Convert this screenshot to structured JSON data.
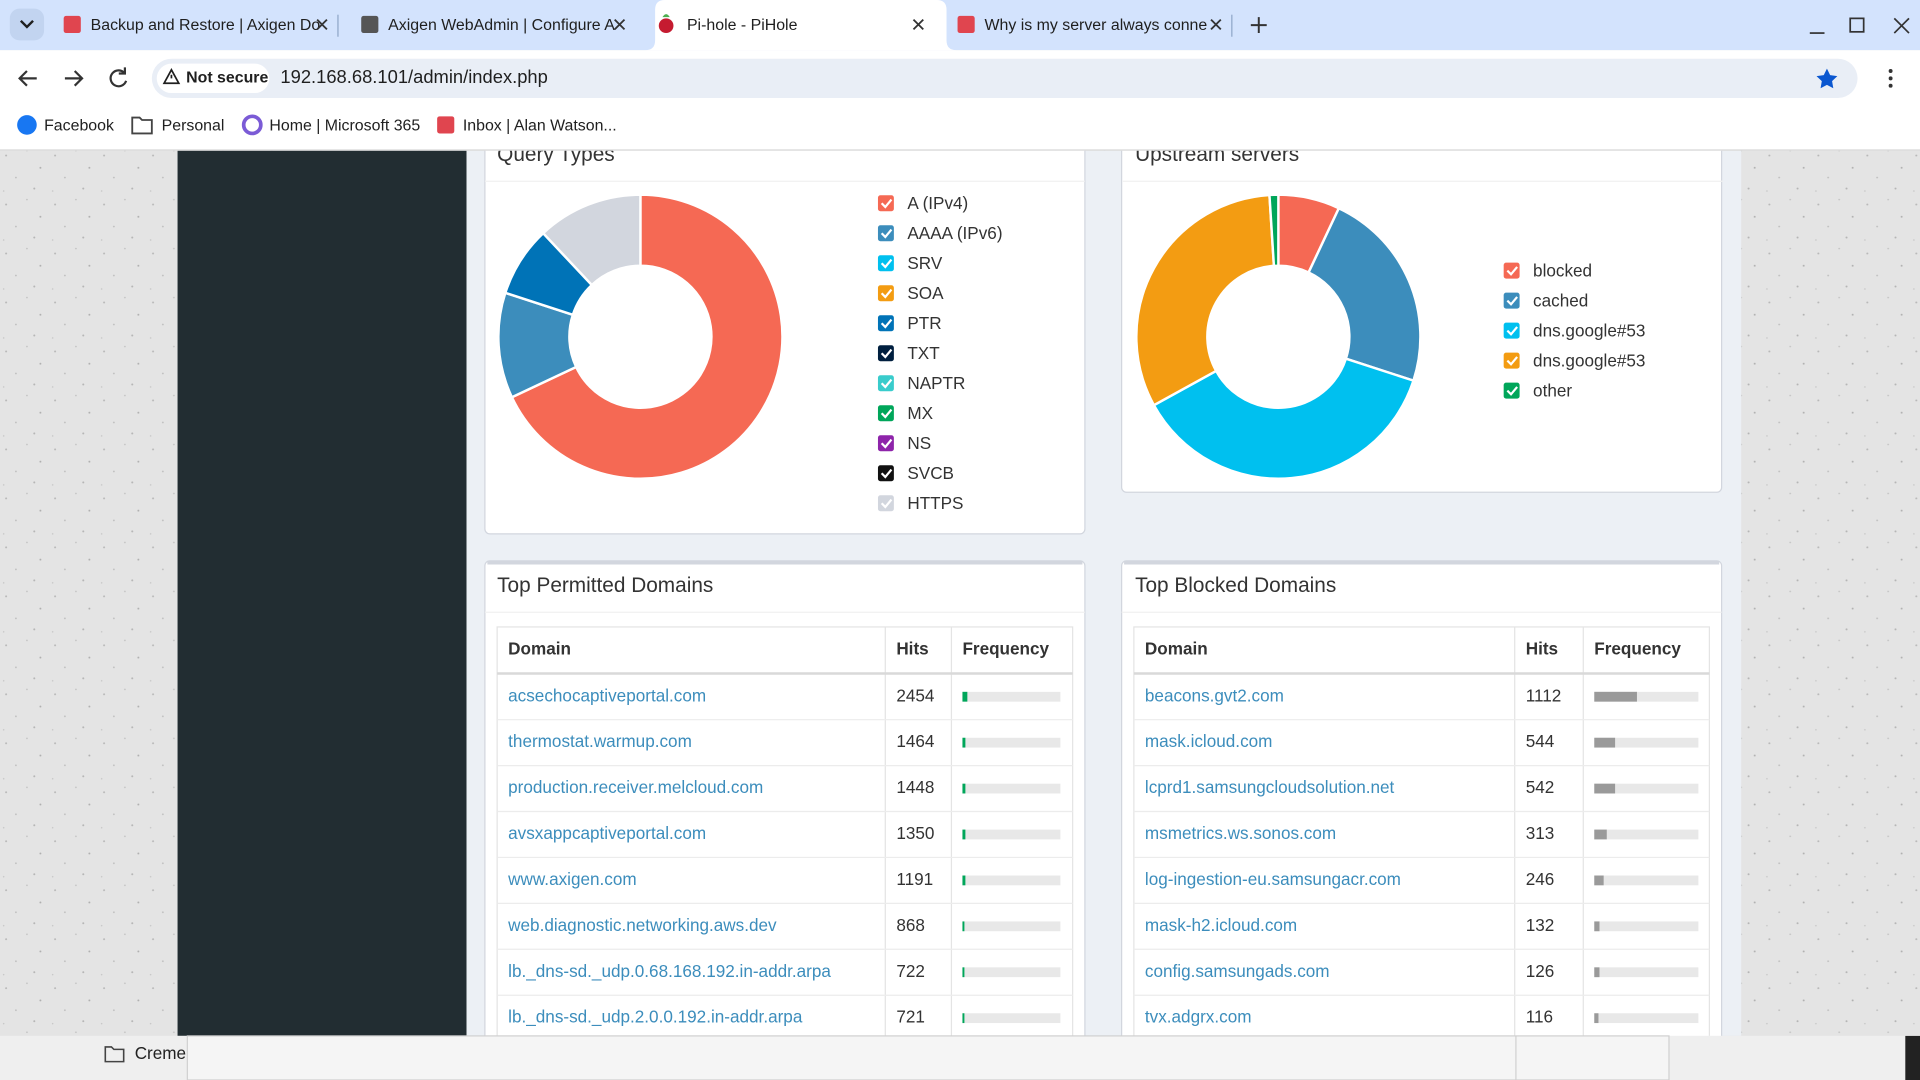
{
  "browser": {
    "tabs": [
      {
        "title": "Backup and Restore | Axigen Do"
      },
      {
        "title": "Axigen WebAdmin | Configure A"
      },
      {
        "title": "Pi-hole - PiHole"
      },
      {
        "title": "Why is my server always conne"
      }
    ],
    "address": {
      "security": "Not secure",
      "url": "192.168.68.101/admin/index.php"
    },
    "bookmarks": [
      "Facebook",
      "Personal",
      "Home | Microsoft 365",
      "Inbox | Alan Watson..."
    ]
  },
  "chart_data": [
    {
      "type": "pie",
      "title": "Query Types",
      "categories": [
        "A (IPv4)",
        "AAAA (IPv6)",
        "SRV",
        "SOA",
        "PTR",
        "TXT",
        "NAPTR",
        "MX",
        "NS",
        "SVCB",
        "HTTPS"
      ],
      "values": [
        68,
        12,
        0,
        0,
        8,
        0,
        0,
        0,
        0,
        0,
        12
      ],
      "colors": [
        "#f56954",
        "#3c8dbc",
        "#00c0ef",
        "#f39c12",
        "#0073b7",
        "#001f3f",
        "#39cccc",
        "#00a65a",
        "#8e24aa",
        "#111111",
        "#d2d6de"
      ]
    },
    {
      "type": "pie",
      "title": "Upstream servers",
      "categories": [
        "blocked",
        "cached",
        "dns.google#53",
        "dns.google#53",
        "other"
      ],
      "values": [
        7,
        23,
        37,
        32,
        1
      ],
      "colors": [
        "#f56954",
        "#3c8dbc",
        "#00c0ef",
        "#f39c12",
        "#00a65a"
      ]
    }
  ],
  "tables": {
    "permitted": {
      "title": "Top Permitted Domains",
      "columns": [
        "Domain",
        "Hits",
        "Frequency"
      ],
      "rows": [
        {
          "domain": "acsechocaptiveportal.com",
          "hits": 2454,
          "frequency": 5
        },
        {
          "domain": "thermostat.warmup.com",
          "hits": 1464,
          "frequency": 3
        },
        {
          "domain": "production.receiver.melcloud.com",
          "hits": 1448,
          "frequency": 3
        },
        {
          "domain": "avsxappcaptiveportal.com",
          "hits": 1350,
          "frequency": 3
        },
        {
          "domain": "www.axigen.com",
          "hits": 1191,
          "frequency": 3
        },
        {
          "domain": "web.diagnostic.networking.aws.dev",
          "hits": 868,
          "frequency": 2
        },
        {
          "domain": "lb._dns-sd._udp.0.68.168.192.in-addr.arpa",
          "hits": 722,
          "frequency": 2
        },
        {
          "domain": "lb._dns-sd._udp.2.0.0.192.in-addr.arpa",
          "hits": 721,
          "frequency": 2
        }
      ]
    },
    "blocked": {
      "title": "Top Blocked Domains",
      "columns": [
        "Domain",
        "Hits",
        "Frequency"
      ],
      "rows": [
        {
          "domain": "beacons.gvt2.com",
          "hits": 1112,
          "frequency": 41
        },
        {
          "domain": "mask.icloud.com",
          "hits": 544,
          "frequency": 20
        },
        {
          "domain": "lcprd1.samsungcloudsolution.net",
          "hits": 542,
          "frequency": 20
        },
        {
          "domain": "msmetrics.ws.sonos.com",
          "hits": 313,
          "frequency": 12
        },
        {
          "domain": "log-ingestion-eu.samsungacr.com",
          "hits": 246,
          "frequency": 9
        },
        {
          "domain": "mask-h2.icloud.com",
          "hits": 132,
          "frequency": 5
        },
        {
          "domain": "config.samsungads.com",
          "hits": 126,
          "frequency": 5
        },
        {
          "domain": "tvx.adgrx.com",
          "hits": 116,
          "frequency": 4
        }
      ]
    }
  },
  "taskbar": {
    "folder": "Creme"
  }
}
